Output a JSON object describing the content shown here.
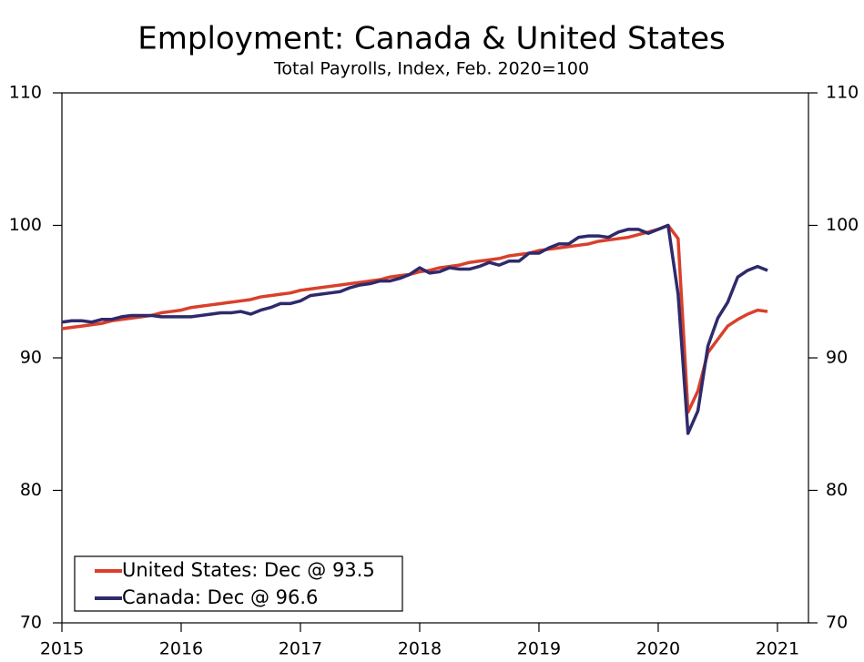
{
  "chart_data": {
    "type": "line",
    "title": "Employment: Canada & United States",
    "subtitle": "Total Payrolls, Index, Feb. 2020=100",
    "x": [
      2015.0,
      2015.083,
      2015.167,
      2015.25,
      2015.333,
      2015.417,
      2015.5,
      2015.583,
      2015.667,
      2015.75,
      2015.833,
      2015.917,
      2016.0,
      2016.083,
      2016.167,
      2016.25,
      2016.333,
      2016.417,
      2016.5,
      2016.583,
      2016.667,
      2016.75,
      2016.833,
      2016.917,
      2017.0,
      2017.083,
      2017.167,
      2017.25,
      2017.333,
      2017.417,
      2017.5,
      2017.583,
      2017.667,
      2017.75,
      2017.833,
      2017.917,
      2018.0,
      2018.083,
      2018.167,
      2018.25,
      2018.333,
      2018.417,
      2018.5,
      2018.583,
      2018.667,
      2018.75,
      2018.833,
      2018.917,
      2019.0,
      2019.083,
      2019.167,
      2019.25,
      2019.333,
      2019.417,
      2019.5,
      2019.583,
      2019.667,
      2019.75,
      2019.833,
      2019.917,
      2020.0,
      2020.083,
      2020.167,
      2020.25,
      2020.333,
      2020.417,
      2020.5,
      2020.583,
      2020.667,
      2020.75,
      2020.833,
      2020.917
    ],
    "series": [
      {
        "name": "United States: Dec @ 93.5",
        "color": "#d9402b",
        "values": [
          92.2,
          92.3,
          92.4,
          92.5,
          92.6,
          92.8,
          92.9,
          93.0,
          93.1,
          93.2,
          93.4,
          93.5,
          93.6,
          93.8,
          93.9,
          94.0,
          94.1,
          94.2,
          94.3,
          94.4,
          94.6,
          94.7,
          94.8,
          94.9,
          95.1,
          95.2,
          95.3,
          95.4,
          95.5,
          95.6,
          95.7,
          95.8,
          95.9,
          96.1,
          96.2,
          96.3,
          96.5,
          96.6,
          96.8,
          96.9,
          97.0,
          97.2,
          97.3,
          97.4,
          97.5,
          97.7,
          97.8,
          97.9,
          98.1,
          98.2,
          98.3,
          98.4,
          98.5,
          98.6,
          98.8,
          98.9,
          99.0,
          99.1,
          99.3,
          99.5,
          99.7,
          100,
          99.0,
          85.9,
          87.5,
          90.4,
          91.4,
          92.4,
          92.9,
          93.3,
          93.6,
          93.5
        ]
      },
      {
        "name": "Canada: Dec @ 96.6",
        "color": "#2e2a6b",
        "values": [
          92.7,
          92.8,
          92.8,
          92.7,
          92.9,
          92.9,
          93.1,
          93.2,
          93.2,
          93.2,
          93.1,
          93.1,
          93.1,
          93.1,
          93.2,
          93.3,
          93.4,
          93.4,
          93.5,
          93.3,
          93.6,
          93.8,
          94.1,
          94.1,
          94.3,
          94.7,
          94.8,
          94.9,
          95.0,
          95.3,
          95.5,
          95.6,
          95.8,
          95.8,
          96.0,
          96.3,
          96.8,
          96.4,
          96.5,
          96.8,
          96.7,
          96.7,
          96.9,
          97.2,
          97.0,
          97.3,
          97.3,
          97.9,
          97.9,
          98.3,
          98.6,
          98.6,
          99.1,
          99.2,
          99.2,
          99.1,
          99.5,
          99.7,
          99.7,
          99.4,
          99.7,
          100,
          94.8,
          84.3,
          86.0,
          90.9,
          93.0,
          94.2,
          96.1,
          96.6,
          96.9,
          96.6
        ]
      }
    ],
    "xlim": [
      2015,
      2021.26
    ],
    "xticks": [
      2015,
      2016,
      2017,
      2018,
      2019,
      2020,
      2021
    ],
    "ylim": [
      70,
      110
    ],
    "yticks": [
      70,
      80,
      90,
      100,
      110
    ],
    "y2lim": [
      70,
      110
    ],
    "y2ticks": [
      70,
      80,
      90,
      100,
      110
    ],
    "legend": "lower left"
  }
}
